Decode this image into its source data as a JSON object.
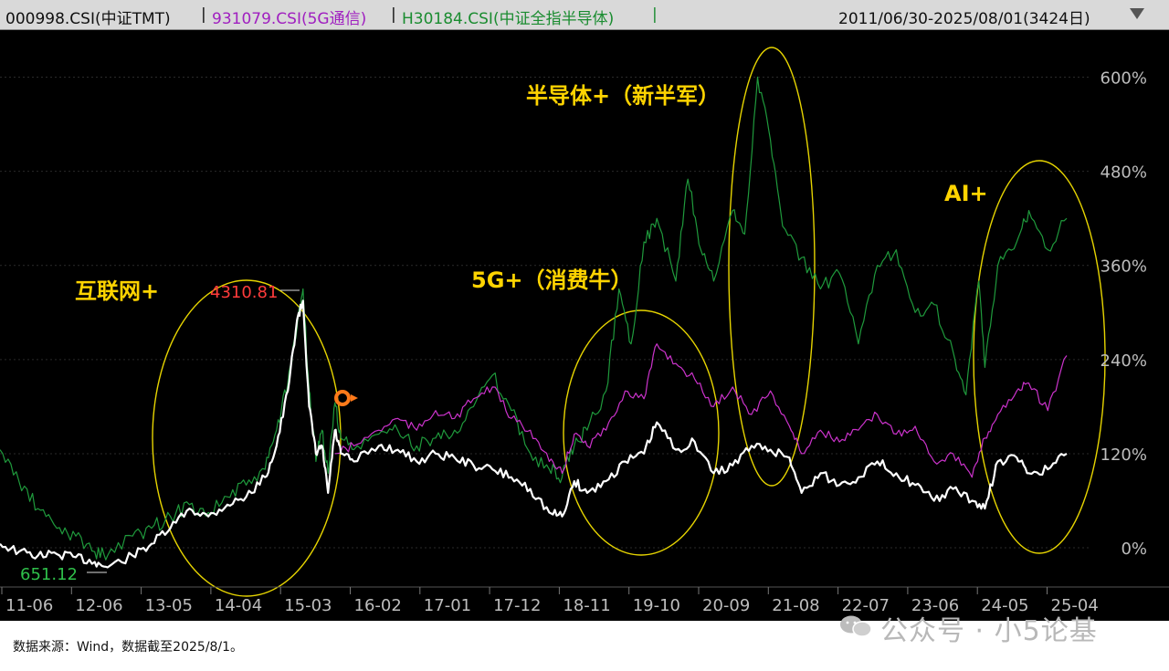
{
  "header": {
    "series_1": "000998.CSI(中证TMT)",
    "series_2": "931079.CSI(5G通信)",
    "series_3": "H30184.CSI(中证全指半导体)",
    "separator": "|",
    "date_range": "2011/06/30-2025/08/01(3424日)",
    "dropdown_icon": "triangle-down-icon"
  },
  "colors": {
    "background": "#000000",
    "header_bg": "#d9d9d9",
    "tmt": "#ffffff",
    "g5": "#cc33cc",
    "semi": "#1f9a3c",
    "annotation": "#ffd400",
    "ellipse": "#e6d400",
    "axis_text": "#bdbdbd",
    "max_label": "#ff3b3b",
    "min_label": "#2fbf4a",
    "series_2_header": "#a020c0",
    "series_3_header": "#1a8c30"
  },
  "footer": {
    "source": "数据来源：Wind，数据截至2025/8/1。",
    "watermark": "公众号 · 小5论基"
  },
  "chart_data": {
    "type": "line",
    "date_range": [
      "2011-06",
      "2025-08"
    ],
    "x_ticks": [
      "11-06",
      "12-06",
      "13-05",
      "14-04",
      "15-03",
      "16-02",
      "17-01",
      "17-12",
      "18-11",
      "19-10",
      "20-09",
      "21-08",
      "22-07",
      "23-06",
      "24-05",
      "25-04"
    ],
    "y_ticks": [
      "0%",
      "120%",
      "240%",
      "360%",
      "480%",
      "600%"
    ],
    "y_tick_values": [
      0,
      120,
      240,
      360,
      480,
      600
    ],
    "ylim": [
      -50,
      660
    ],
    "max_label": "4310.81",
    "min_label": "651.12",
    "annotations": [
      "互联网+",
      "5G+（消费牛）",
      "半导体+（新半军）",
      "AI+"
    ],
    "series": [
      {
        "name": "000998.CSI(中证TMT)",
        "color": "#ffffff",
        "x": [
          2011.5,
          2011.75,
          2012.0,
          2012.25,
          2012.5,
          2012.75,
          2012.92,
          2013.25,
          2013.5,
          2013.75,
          2014.0,
          2014.25,
          2014.5,
          2014.75,
          2015.0,
          2015.15,
          2015.3,
          2015.42,
          2015.5,
          2015.58,
          2015.67,
          2015.75,
          2015.83,
          2015.92,
          2016.0,
          2016.17,
          2016.5,
          2016.75,
          2017.0,
          2017.25,
          2017.5,
          2017.75,
          2018.0,
          2018.25,
          2018.5,
          2018.75,
          2018.92,
          2019.08,
          2019.25,
          2019.5,
          2019.75,
          2020.0,
          2020.17,
          2020.42,
          2020.67,
          2020.92,
          2021.17,
          2021.42,
          2021.67,
          2021.92,
          2022.08,
          2022.33,
          2022.58,
          2022.83,
          2023.08,
          2023.33,
          2023.58,
          2023.83,
          2024.08,
          2024.33,
          2024.5,
          2024.67,
          2024.92,
          2025.08,
          2025.33,
          2025.58
        ],
        "values": [
          5,
          -5,
          -10,
          -8,
          -12,
          -18,
          -25,
          -10,
          5,
          25,
          50,
          40,
          55,
          65,
          90,
          130,
          200,
          290,
          315,
          180,
          120,
          130,
          70,
          150,
          120,
          110,
          130,
          125,
          110,
          120,
          115,
          105,
          100,
          90,
          75,
          45,
          40,
          85,
          70,
          85,
          110,
          120,
          160,
          125,
          135,
          95,
          105,
          130,
          125,
          115,
          70,
          95,
          80,
          90,
          110,
          95,
          80,
          60,
          75,
          60,
          50,
          110,
          115,
          95,
          100,
          120
        ]
      },
      {
        "name": "931079.CSI(5G通信)",
        "color": "#cc33cc",
        "x": [
          2015.92,
          2016.17,
          2016.5,
          2016.75,
          2017.0,
          2017.25,
          2017.5,
          2017.75,
          2018.0,
          2018.25,
          2018.5,
          2018.75,
          2018.92,
          2019.08,
          2019.25,
          2019.5,
          2019.75,
          2020.0,
          2020.17,
          2020.42,
          2020.67,
          2020.92,
          2021.17,
          2021.42,
          2021.67,
          2021.92,
          2022.08,
          2022.33,
          2022.58,
          2022.83,
          2023.08,
          2023.33,
          2023.58,
          2023.83,
          2024.08,
          2024.33,
          2024.5,
          2024.67,
          2024.92,
          2025.08,
          2025.33,
          2025.58
        ],
        "values": [
          120,
          130,
          150,
          165,
          150,
          175,
          165,
          190,
          205,
          165,
          150,
          110,
          95,
          145,
          130,
          150,
          200,
          190,
          260,
          235,
          215,
          180,
          205,
          170,
          200,
          155,
          120,
          150,
          135,
          150,
          170,
          145,
          155,
          110,
          120,
          90,
          140,
          170,
          200,
          210,
          175,
          245
        ]
      },
      {
        "name": "H30184.CSI(中证全指半导体)",
        "color": "#1f9a3c",
        "x": [
          2011.5,
          2011.75,
          2012.0,
          2012.25,
          2012.5,
          2012.75,
          2012.92,
          2013.25,
          2013.5,
          2013.75,
          2014.0,
          2014.25,
          2014.5,
          2014.75,
          2015.0,
          2015.15,
          2015.3,
          2015.42,
          2015.5,
          2015.58,
          2015.67,
          2015.75,
          2015.83,
          2015.92,
          2016.0,
          2016.17,
          2016.5,
          2016.75,
          2017.0,
          2017.25,
          2017.5,
          2017.75,
          2018.0,
          2018.25,
          2018.5,
          2018.75,
          2018.92,
          2019.08,
          2019.25,
          2019.5,
          2019.67,
          2019.83,
          2020.0,
          2020.17,
          2020.42,
          2020.58,
          2020.75,
          2020.92,
          2021.17,
          2021.33,
          2021.5,
          2021.67,
          2021.83,
          2022.08,
          2022.33,
          2022.58,
          2022.83,
          2023.08,
          2023.33,
          2023.58,
          2023.83,
          2024.08,
          2024.25,
          2024.42,
          2024.5,
          2024.67,
          2024.92,
          2025.08,
          2025.33,
          2025.58
        ],
        "values": [
          125,
          85,
          50,
          25,
          15,
          -5,
          -10,
          15,
          25,
          40,
          55,
          45,
          65,
          80,
          100,
          150,
          210,
          280,
          330,
          200,
          110,
          150,
          95,
          185,
          140,
          125,
          145,
          150,
          130,
          140,
          150,
          180,
          220,
          175,
          120,
          100,
          90,
          130,
          150,
          200,
          330,
          260,
          390,
          420,
          340,
          470,
          380,
          340,
          430,
          400,
          600,
          520,
          410,
          370,
          330,
          350,
          260,
          360,
          380,
          300,
          310,
          250,
          195,
          340,
          230,
          360,
          390,
          430,
          380,
          420
        ]
      }
    ]
  }
}
